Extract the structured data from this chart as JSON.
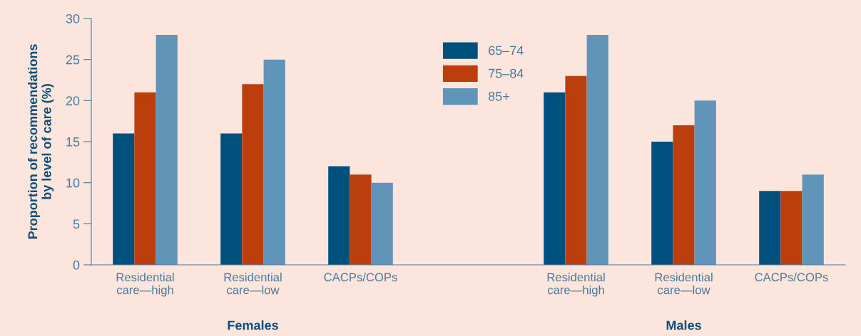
{
  "chart_data": {
    "type": "bar",
    "ylabel": "Proportion of recommendations\nby level of care (%)",
    "categories": [
      "Residential\ncare—high",
      "Residential\ncare—low",
      "CACPs/COPs",
      null,
      "Residential\ncare—high",
      "Residential\ncare—low",
      "CACPs/COPs"
    ],
    "series": [
      {
        "name": "65–74",
        "color": "#00507d",
        "values": [
          16,
          16,
          12,
          null,
          21,
          15,
          9
        ]
      },
      {
        "name": "75–84",
        "color": "#bb3e0c",
        "values": [
          21,
          22,
          11,
          null,
          23,
          17,
          9
        ]
      },
      {
        "name": "85+",
        "color": "#6094b8",
        "values": [
          28,
          25,
          10,
          null,
          28,
          20,
          11
        ]
      }
    ],
    "ylim": [
      0,
      30
    ],
    "yticks": [
      0,
      5,
      10,
      15,
      20,
      25,
      30
    ],
    "grid": false,
    "legend": "top",
    "annotations": [
      "Females",
      "Males"
    ]
  }
}
